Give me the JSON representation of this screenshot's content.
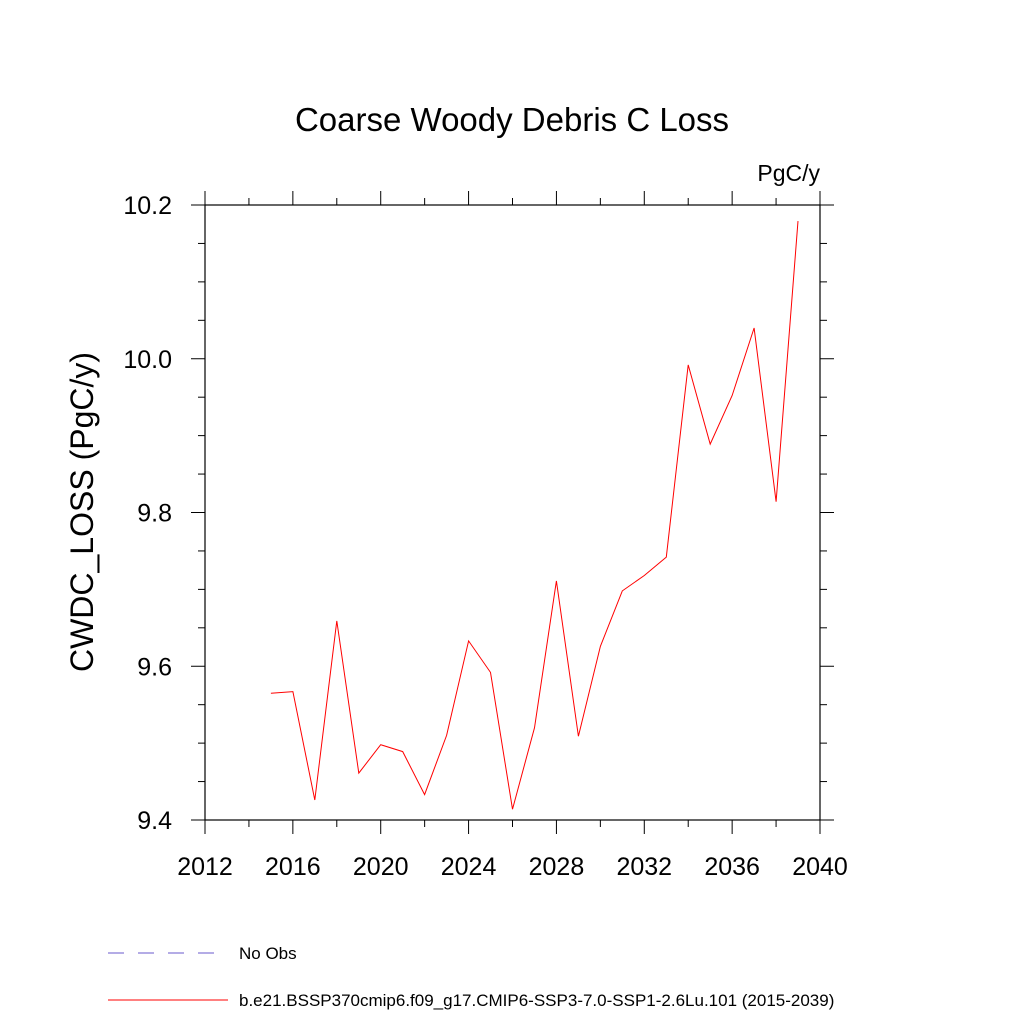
{
  "chart_data": {
    "type": "line",
    "title": "Coarse Woody Debris C Loss",
    "units_label": "PgC/y",
    "xlabel": "",
    "ylabel": "CWDC_LOSS  (PgC/y)",
    "xlim": [
      2012,
      2040
    ],
    "ylim": [
      9.4,
      10.2
    ],
    "xticks": [
      "2012",
      "2016",
      "2020",
      "2024",
      "2028",
      "2032",
      "2036",
      "2040"
    ],
    "yticks": [
      "9.4",
      "9.6",
      "9.8",
      "10.0",
      "10.2"
    ],
    "grid": false,
    "series": [
      {
        "name": "b.e21.BSSP370cmip6.f09_g17.CMIP6-SSP3-7.0-SSP1-2.6Lu.101 (2015-2039)",
        "color": "#ff0000",
        "x": [
          2015,
          2016,
          2017,
          2018,
          2019,
          2020,
          2021,
          2022,
          2023,
          2024,
          2025,
          2026,
          2027,
          2028,
          2029,
          2030,
          2031,
          2032,
          2033,
          2034,
          2035,
          2036,
          2037,
          2038,
          2039
        ],
        "values": [
          9.565,
          9.567,
          9.426,
          9.659,
          9.461,
          9.498,
          9.489,
          9.433,
          9.51,
          9.633,
          9.592,
          9.414,
          9.52,
          9.711,
          9.509,
          9.626,
          9.698,
          9.718,
          9.742,
          9.992,
          9.889,
          9.952,
          10.04,
          9.814,
          10.179
        ]
      }
    ],
    "legend": [
      {
        "label": "No Obs",
        "color": "#6a5acd",
        "style": "dashed"
      },
      {
        "label": "b.e21.BSSP370cmip6.f09_g17.CMIP6-SSP3-7.0-SSP1-2.6Lu.101 (2015-2039)",
        "color": "#ff0000",
        "style": "solid"
      }
    ]
  }
}
